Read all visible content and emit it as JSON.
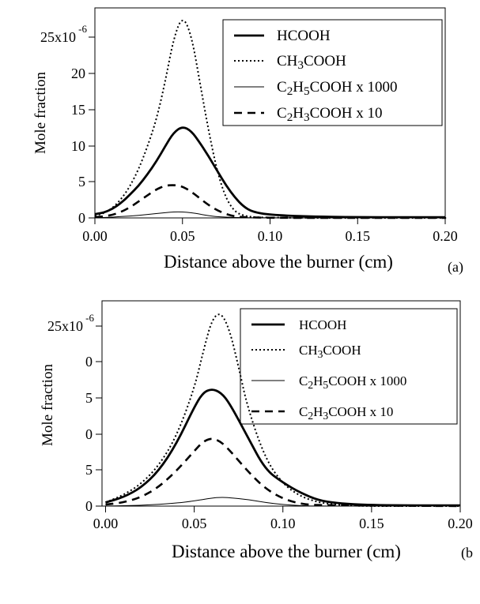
{
  "chart_data": [
    {
      "panel_label": "(a)",
      "type": "line",
      "xlabel": "Distance above the burner (cm)",
      "ylabel": "Mole fraction",
      "xlim": [
        0.0,
        0.2
      ],
      "ylim": [
        0,
        2.8e-05
      ],
      "x_ticks": [
        "0.00",
        "0.05",
        "0.10",
        "0.15",
        "0.20"
      ],
      "y_ticks": [
        "0",
        "5",
        "10",
        "15",
        "20",
        "25x10"
      ],
      "y_exponent": "-6",
      "legend_position": "top-right",
      "series": [
        {
          "name": "HCOOH",
          "style": "solid-thick",
          "x": [
            0,
            0.005,
            0.01,
            0.015,
            0.02,
            0.025,
            0.03,
            0.035,
            0.04,
            0.045,
            0.05,
            0.055,
            0.06,
            0.065,
            0.07,
            0.075,
            0.08,
            0.085,
            0.09,
            0.1,
            0.12,
            0.15,
            0.2
          ],
          "y": [
            5e-07,
            7e-07,
            1.2e-06,
            2e-06,
            3.1e-06,
            4.3e-06,
            5.8e-06,
            7.5e-06,
            9.5e-06,
            1.14e-05,
            1.22e-05,
            1.16e-05,
            1e-05,
            8.2e-06,
            6.2e-06,
            4.3e-06,
            2.7e-06,
            1.5e-06,
            8e-07,
            4e-07,
            2e-07,
            1e-07,
            1e-07
          ]
        },
        {
          "name": "CH3COOH",
          "style": "dotted",
          "x": [
            0,
            0.005,
            0.01,
            0.015,
            0.02,
            0.025,
            0.03,
            0.035,
            0.04,
            0.045,
            0.05,
            0.055,
            0.06,
            0.065,
            0.07,
            0.075,
            0.08,
            0.085,
            0.09,
            0.1,
            0.12,
            0.2
          ],
          "y": [
            3e-07,
            6e-07,
            1.3e-06,
            2.5e-06,
            4.2e-06,
            6.5e-06,
            9.5e-06,
            1.3e-05,
            1.8e-05,
            2.4e-05,
            2.7e-05,
            2.45e-05,
            1.8e-05,
            1.15e-05,
            6e-06,
            2.5e-06,
            8e-07,
            3e-07,
            1e-07,
            5e-08,
            0,
            0
          ]
        },
        {
          "name": "C2H5COOH x 1000",
          "style": "solid-thin",
          "x": [
            0,
            0.01,
            0.02,
            0.03,
            0.04,
            0.045,
            0.05,
            0.055,
            0.06,
            0.065,
            0.07,
            0.08,
            0.1,
            0.2
          ],
          "y": [
            0,
            1e-07,
            2.5e-07,
            4.5e-07,
            7e-07,
            8e-07,
            8e-07,
            7e-07,
            5e-07,
            3e-07,
            1.5e-07,
            5e-08,
            0,
            0
          ]
        },
        {
          "name": "C2H3COOH x 10",
          "style": "dashed",
          "x": [
            0,
            0.005,
            0.01,
            0.015,
            0.02,
            0.025,
            0.03,
            0.035,
            0.04,
            0.045,
            0.05,
            0.055,
            0.06,
            0.065,
            0.07,
            0.075,
            0.08,
            0.085,
            0.1,
            0.2
          ],
          "y": [
            1e-07,
            2e-07,
            4e-07,
            8e-07,
            1.4e-06,
            2.2e-06,
            3e-06,
            3.8e-06,
            4.3e-06,
            4.4e-06,
            4.2e-06,
            3.5e-06,
            2.6e-06,
            1.7e-06,
            1e-06,
            5e-07,
            2e-07,
            1e-07,
            0,
            0
          ]
        }
      ]
    },
    {
      "panel_label": "(b",
      "type": "line",
      "xlabel": "Distance above the burner (cm)",
      "ylabel": "Mole fraction",
      "xlim": [
        -0.002,
        0.2
      ],
      "ylim": [
        0,
        2.8e-05
      ],
      "x_ticks": [
        "0.00",
        "0.05",
        "0.10",
        "0.15",
        "0.20"
      ],
      "y_ticks": [
        "0",
        "5",
        "0",
        "5",
        "0",
        "25x10"
      ],
      "y_exponent": "-6",
      "legend_position": "top-right",
      "series": [
        {
          "name": "HCOOH",
          "style": "solid-thick",
          "x": [
            0,
            0.01,
            0.02,
            0.03,
            0.04,
            0.05,
            0.055,
            0.06,
            0.065,
            0.07,
            0.08,
            0.09,
            0.1,
            0.11,
            0.12,
            0.13,
            0.15,
            0.2
          ],
          "y": [
            5e-07,
            1.2e-06,
            2.5e-06,
            4.8e-06,
            8.5e-06,
            1.35e-05,
            1.55e-05,
            1.6e-05,
            1.55e-05,
            1.4e-05,
            9.5e-06,
            5e-06,
            3.2e-06,
            1.8e-06,
            8e-07,
            4e-07,
            1e-07,
            1e-07
          ]
        },
        {
          "name": "CH3COOH",
          "style": "dotted",
          "x": [
            0,
            0.01,
            0.02,
            0.03,
            0.04,
            0.05,
            0.055,
            0.06,
            0.065,
            0.07,
            0.075,
            0.08,
            0.09,
            0.1,
            0.11,
            0.12,
            0.13,
            0.14,
            0.15,
            0.2
          ],
          "y": [
            5e-07,
            1.5e-06,
            3e-06,
            5.5e-06,
            9.5e-06,
            1.6e-05,
            2.1e-05,
            2.55e-05,
            2.65e-05,
            2.4e-05,
            1.9e-05,
            1.35e-05,
            6.5e-06,
            3e-06,
            1.3e-06,
            5e-07,
            2e-07,
            5e-08,
            0,
            0
          ]
        },
        {
          "name": "C2H5COOH x 1000",
          "style": "solid-thin",
          "x": [
            0,
            0.02,
            0.04,
            0.05,
            0.06,
            0.065,
            0.07,
            0.08,
            0.09,
            0.1,
            0.11,
            0.12,
            0.2
          ],
          "y": [
            0,
            1e-07,
            4e-07,
            7e-07,
            1.1e-06,
            1.2e-06,
            1.15e-06,
            9e-07,
            5e-07,
            2e-07,
            5e-08,
            0,
            0
          ]
        },
        {
          "name": "C2H3COOH x 10",
          "style": "dashed",
          "x": [
            0,
            0.01,
            0.02,
            0.03,
            0.04,
            0.05,
            0.055,
            0.06,
            0.065,
            0.07,
            0.08,
            0.09,
            0.1,
            0.11,
            0.12,
            0.2
          ],
          "y": [
            2e-07,
            5e-07,
            1.2e-06,
            2.6e-06,
            4.8e-06,
            7.5e-06,
            8.8e-06,
            9.3e-06,
            8.8e-06,
            7.6e-06,
            4.8e-06,
            2.4e-06,
            1e-06,
            3e-07,
            1e-07,
            0
          ]
        }
      ]
    }
  ]
}
